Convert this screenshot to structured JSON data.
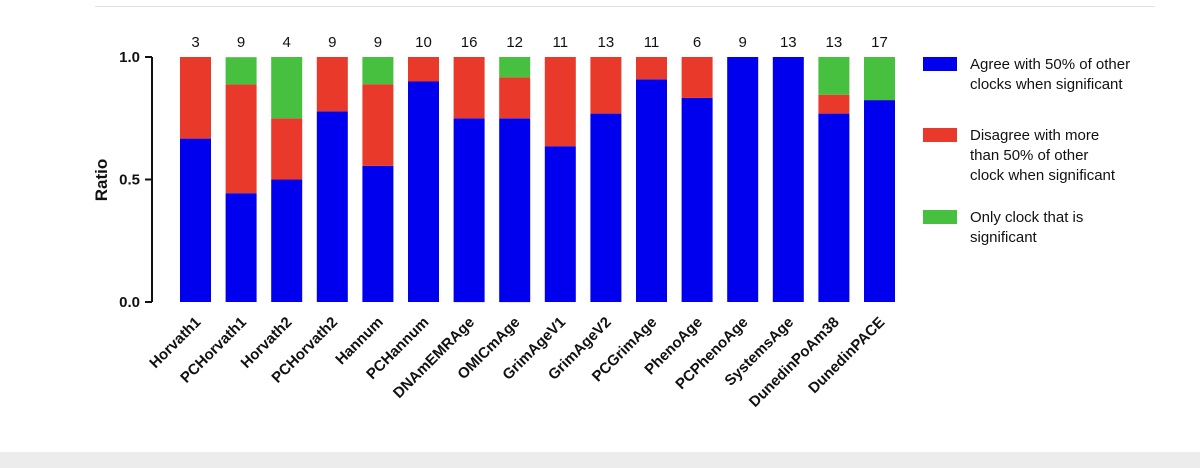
{
  "chart_data": {
    "type": "bar",
    "stacked": true,
    "ylabel": "Ratio",
    "ylim": [
      0,
      1
    ],
    "yticks": [
      "0.0",
      "0.5",
      "1.0"
    ],
    "grid": false,
    "legend_position": "right",
    "categories": [
      "Horvath1",
      "PCHorvath1",
      "Horvath2",
      "PCHorvath2",
      "Hannum",
      "PCHannum",
      "DNAmEMRAge",
      "OMICmAge",
      "GrimAgeV1",
      "GrimAgeV2",
      "PCGrimAge",
      "PhenoAge",
      "PCPhenoAge",
      "SystemsAge",
      "DunedinPoAm38",
      "DunedinPACE"
    ],
    "counts": [
      "3",
      "9",
      "4",
      "9",
      "9",
      "10",
      "16",
      "12",
      "11",
      "13",
      "11",
      "6",
      "9",
      "13",
      "13",
      "17"
    ],
    "series": [
      {
        "name_lines": [
          "Agree with 50% of other",
          "clocks when significant"
        ],
        "color": "#0000ee",
        "values": [
          0.667,
          0.444,
          0.5,
          0.778,
          0.556,
          0.9,
          0.75,
          0.75,
          0.636,
          0.769,
          0.909,
          0.833,
          1.0,
          1.0,
          0.769,
          0.824
        ]
      },
      {
        "name_lines": [
          "Disagree with more",
          "than 50% of other",
          "clock when significant"
        ],
        "color": "#e8392a",
        "values": [
          0.333,
          0.444,
          0.25,
          0.222,
          0.333,
          0.1,
          0.25,
          0.167,
          0.364,
          0.231,
          0.091,
          0.167,
          0.0,
          0.0,
          0.077,
          0.0
        ]
      },
      {
        "name_lines": [
          "Only clock that is",
          "significant"
        ],
        "color": "#47c040",
        "values": [
          0.0,
          0.111,
          0.25,
          0.0,
          0.111,
          0.0,
          0.0,
          0.083,
          0.0,
          0.0,
          0.0,
          0.0,
          0.0,
          0.0,
          0.154,
          0.176
        ]
      }
    ]
  }
}
